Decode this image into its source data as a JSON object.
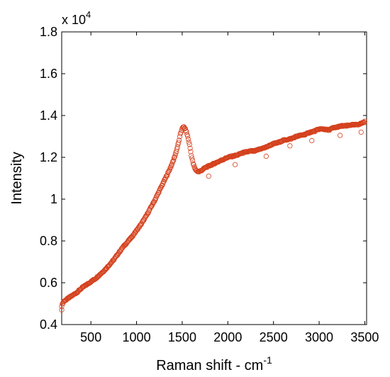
{
  "chart_data": {
    "type": "scatter",
    "xlabel": "Raman shift - cm",
    "xlabel_superscript": "-1",
    "ylabel": "Intensity",
    "y_multiplier_base": "x 10",
    "y_multiplier_exponent": "4",
    "xlim": [
      180,
      3520
    ],
    "ylim": [
      0.4,
      1.8
    ],
    "x_ticks": [
      500,
      1000,
      1500,
      2000,
      2500,
      3000,
      3500
    ],
    "x_tick_labels": [
      "500",
      "1000",
      "1500",
      "2000",
      "2500",
      "3000",
      "3500"
    ],
    "y_ticks": [
      0.4,
      0.6,
      0.8,
      1.0,
      1.2,
      1.4,
      1.6,
      1.8
    ],
    "y_tick_labels": [
      "0.4",
      "0.6",
      "0.8",
      "1",
      "1.2",
      "1.4",
      "1.6",
      "1.8"
    ],
    "grid": false,
    "marker": "open-circle",
    "color": "#d4401c",
    "series": [
      {
        "x": [
          180,
          200,
          250,
          300,
          350,
          400,
          450,
          500,
          550,
          600,
          650,
          700,
          750,
          800,
          850,
          900,
          950,
          1000,
          1050,
          1100,
          1150,
          1200,
          1250,
          1300,
          1350,
          1400,
          1430,
          1460,
          1480,
          1500,
          1520,
          1540,
          1560,
          1580,
          1600,
          1620,
          1640,
          1660,
          1680,
          1700,
          1720,
          1750,
          1800,
          1850,
          1900,
          1950,
          2000,
          2050,
          2100,
          2150,
          2200,
          2250,
          2300,
          2350,
          2400,
          2450,
          2500,
          2550,
          2600,
          2650,
          2700,
          2750,
          2800,
          2850,
          2900,
          2950,
          3000,
          3050,
          3100,
          3150,
          3200,
          3250,
          3300,
          3350,
          3400,
          3450,
          3500
        ],
        "y": [
          0.49,
          0.51,
          0.525,
          0.54,
          0.555,
          0.575,
          0.59,
          0.605,
          0.62,
          0.64,
          0.66,
          0.685,
          0.71,
          0.74,
          0.77,
          0.795,
          0.82,
          0.85,
          0.88,
          0.915,
          0.955,
          0.995,
          1.04,
          1.085,
          1.13,
          1.18,
          1.22,
          1.27,
          1.31,
          1.34,
          1.345,
          1.33,
          1.3,
          1.26,
          1.21,
          1.17,
          1.145,
          1.135,
          1.13,
          1.135,
          1.14,
          1.15,
          1.16,
          1.17,
          1.18,
          1.19,
          1.2,
          1.205,
          1.21,
          1.22,
          1.225,
          1.23,
          1.23,
          1.24,
          1.245,
          1.255,
          1.265,
          1.27,
          1.28,
          1.285,
          1.29,
          1.3,
          1.305,
          1.31,
          1.32,
          1.325,
          1.335,
          1.335,
          1.33,
          1.34,
          1.345,
          1.35,
          1.35,
          1.355,
          1.355,
          1.36,
          1.37
        ]
      }
    ],
    "outliers": {
      "x": [
        180,
        1790,
        2080,
        2420,
        2680,
        2920,
        3230,
        3460
      ],
      "y": [
        0.47,
        1.11,
        1.165,
        1.205,
        1.255,
        1.28,
        1.305,
        1.32
      ]
    }
  }
}
